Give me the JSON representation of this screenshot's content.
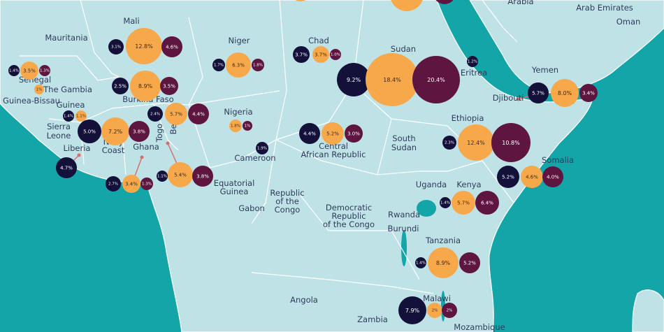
{
  "colors": {
    "sea": "#13a5a8",
    "land": "#bfe2e7",
    "border": "#ffffff",
    "series": [
      "#13103a",
      "#f7a84a",
      "#5e1540"
    ],
    "leader": "#d46f6f"
  },
  "countries": [
    {
      "key": "mauritania",
      "name": "Mauritania"
    },
    {
      "key": "mali",
      "name": "Mali"
    },
    {
      "key": "niger",
      "name": "Niger"
    },
    {
      "key": "chad",
      "name": "Chad"
    },
    {
      "key": "sudan",
      "name": "Sudan"
    },
    {
      "key": "eritrea",
      "name": "Eritrea"
    },
    {
      "key": "yemen",
      "name": "Yemen"
    },
    {
      "key": "djibouti",
      "name": "Djibouti"
    },
    {
      "key": "senegal",
      "name": "Senegal"
    },
    {
      "key": "gambia",
      "name": "The Gambia"
    },
    {
      "key": "guinea_bissau",
      "name": "Guinea-Bissau"
    },
    {
      "key": "guinea",
      "name": "Guinea"
    },
    {
      "key": "sierra_leone",
      "name": "Sierra Leone"
    },
    {
      "key": "liberia",
      "name": "Liberia"
    },
    {
      "key": "ivory_coast",
      "name": "Ivory Coast"
    },
    {
      "key": "ghana",
      "name": "Ghana"
    },
    {
      "key": "togo",
      "name": "Togo"
    },
    {
      "key": "benin",
      "name": "Benin"
    },
    {
      "key": "burkina_faso",
      "name": "Burkina Faso"
    },
    {
      "key": "nigeria",
      "name": "Nigeria"
    },
    {
      "key": "cameroon",
      "name": "Cameroon"
    },
    {
      "key": "car",
      "name": "Central African Republic"
    },
    {
      "key": "south_sudan",
      "name": "South Sudan"
    },
    {
      "key": "ethiopia",
      "name": "Ethiopia"
    },
    {
      "key": "somalia",
      "name": "Somalia"
    },
    {
      "key": "kenya",
      "name": "Kenya"
    },
    {
      "key": "uganda",
      "name": "Uganda"
    },
    {
      "key": "rwanda",
      "name": "Rwanda"
    },
    {
      "key": "burundi",
      "name": "Burundi"
    },
    {
      "key": "tanzania",
      "name": "Tanzania"
    },
    {
      "key": "eq_guinea",
      "name": "Equatorial Guinea"
    },
    {
      "key": "gabon",
      "name": "Gabon"
    },
    {
      "key": "rep_congo",
      "name": "Republic of the Congo"
    },
    {
      "key": "drc",
      "name": "Democratic Republic of the Congo"
    },
    {
      "key": "angola",
      "name": "Angola"
    },
    {
      "key": "zambia",
      "name": "Zambia"
    },
    {
      "key": "malawi",
      "name": "Malawi"
    },
    {
      "key": "mozambique",
      "name": "Mozambique"
    },
    {
      "key": "arabia",
      "name": "Arabia"
    },
    {
      "key": "uae",
      "name": "Arab Emirates"
    },
    {
      "key": "oman",
      "name": "Oman"
    }
  ],
  "chart_data": {
    "type": "bubble-map",
    "series_order": [
      "first",
      "second",
      "third"
    ],
    "countries": [
      {
        "country": "Mali",
        "values": [
          3.1,
          12.8,
          4.6
        ]
      },
      {
        "country": "Niger",
        "values": [
          1.7,
          6.3,
          1.8
        ]
      },
      {
        "country": "Chad",
        "values": [
          3.7,
          3.7,
          1.0
        ]
      },
      {
        "country": "Sudan",
        "values": [
          9.2,
          18.4,
          20.4
        ]
      },
      {
        "country": "Eritrea",
        "values": [
          1.2
        ]
      },
      {
        "country": "Yemen",
        "values": [
          5.7,
          8.0,
          3.4
        ]
      },
      {
        "country": "Senegal",
        "values": [
          1.4,
          3.5,
          1.3
        ]
      },
      {
        "country": "The Gambia",
        "values": [
          1
        ]
      },
      {
        "country": "Guinea",
        "values": [
          1.4,
          1.1
        ]
      },
      {
        "country": "Burkina Faso",
        "values": [
          2.5,
          8.9,
          3.5
        ]
      },
      {
        "country": "Togo",
        "values": [
          2.4
        ]
      },
      {
        "country": "Benin",
        "values": [
          5.7,
          4.4
        ]
      },
      {
        "country": "Nigeria",
        "values": [
          1.8,
          1
        ]
      },
      {
        "country": "Ivory Coast",
        "values": [
          5.0,
          7.2,
          3.8
        ]
      },
      {
        "country": "Liberia",
        "values": [
          4.7
        ]
      },
      {
        "country": "Ghana",
        "values": [
          2.7,
          3.4,
          1.3
        ]
      },
      {
        "country": "Togo/Benin coast",
        "values": [
          1.1,
          5.4,
          3.8
        ]
      },
      {
        "country": "Cameroon",
        "values": [
          1.9
        ]
      },
      {
        "country": "Central African Republic",
        "values": [
          4.4,
          5.2,
          3.0
        ]
      },
      {
        "country": "Ethiopia",
        "values": [
          2.3,
          12.4,
          10.8
        ]
      },
      {
        "country": "Somalia",
        "values": [
          5.2,
          4.6,
          4.0
        ]
      },
      {
        "country": "Kenya",
        "values": [
          1.4,
          5.7,
          6.4
        ]
      },
      {
        "country": "Tanzania",
        "values": [
          1.4,
          8.9,
          5.2
        ]
      },
      {
        "country": "Malawi",
        "values": [
          7.9,
          2,
          2
        ]
      }
    ],
    "bubbles": [
      {
        "v": "3.1%",
        "s": 0
      },
      {
        "v": "12.8%",
        "s": 1
      },
      {
        "v": "4.6%",
        "s": 2
      },
      {
        "v": "1.7%",
        "s": 0
      },
      {
        "v": "6.3%",
        "s": 1
      },
      {
        "v": "1.8%",
        "s": 2
      },
      {
        "v": "3.7%",
        "s": 0
      },
      {
        "v": "3.7%",
        "s": 1
      },
      {
        "v": "1.0%",
        "s": 2
      },
      {
        "v": "9.2%",
        "s": 0
      },
      {
        "v": "18.4%",
        "s": 1
      },
      {
        "v": "20.4%",
        "s": 2
      },
      {
        "v": "1.2%",
        "s": 0
      },
      {
        "v": "5.7%",
        "s": 0
      },
      {
        "v": "8.0%",
        "s": 1
      },
      {
        "v": "3.4%",
        "s": 2
      },
      {
        "v": "1.4%",
        "s": 0
      },
      {
        "v": "3.5%",
        "s": 1
      },
      {
        "v": "1.3%",
        "s": 2
      },
      {
        "v": "1%",
        "s": 1
      },
      {
        "v": "1.4%",
        "s": 0
      },
      {
        "v": "1.1%",
        "s": 1
      },
      {
        "v": "2.5%",
        "s": 0
      },
      {
        "v": "8.9%",
        "s": 1
      },
      {
        "v": "3.5%",
        "s": 2
      },
      {
        "v": "2.4%",
        "s": 0
      },
      {
        "v": "5.7%",
        "s": 1
      },
      {
        "v": "4.4%",
        "s": 2
      },
      {
        "v": "1.8%",
        "s": 1
      },
      {
        "v": "1%",
        "s": 2
      },
      {
        "v": "5.0%",
        "s": 0
      },
      {
        "v": "7.2%",
        "s": 1
      },
      {
        "v": "3.8%",
        "s": 2
      },
      {
        "v": "4.7%",
        "s": 0
      },
      {
        "v": "2.7%",
        "s": 0
      },
      {
        "v": "3.4%",
        "s": 1
      },
      {
        "v": "1.3%",
        "s": 2
      },
      {
        "v": "1.1%",
        "s": 0
      },
      {
        "v": "5.4%",
        "s": 1
      },
      {
        "v": "3.8%",
        "s": 2
      },
      {
        "v": "1.9%",
        "s": 0
      },
      {
        "v": "4.4%",
        "s": 0
      },
      {
        "v": "5.2%",
        "s": 1
      },
      {
        "v": "3.0%",
        "s": 2
      },
      {
        "v": "2.3%",
        "s": 0
      },
      {
        "v": "12.4%",
        "s": 1
      },
      {
        "v": "10.8%",
        "s": 2
      },
      {
        "v": "5.2%",
        "s": 0
      },
      {
        "v": "4.6%",
        "s": 1
      },
      {
        "v": "4.0%",
        "s": 2
      },
      {
        "v": "1.4%",
        "s": 0
      },
      {
        "v": "5.7%",
        "s": 1
      },
      {
        "v": "6.4%",
        "s": 2
      },
      {
        "v": "1.4%",
        "s": 0
      },
      {
        "v": "8.9%",
        "s": 1
      },
      {
        "v": "5.2%",
        "s": 2
      },
      {
        "v": "7.9%",
        "s": 0
      },
      {
        "v": "2%",
        "s": 1
      },
      {
        "v": "2%",
        "s": 2
      }
    ]
  }
}
